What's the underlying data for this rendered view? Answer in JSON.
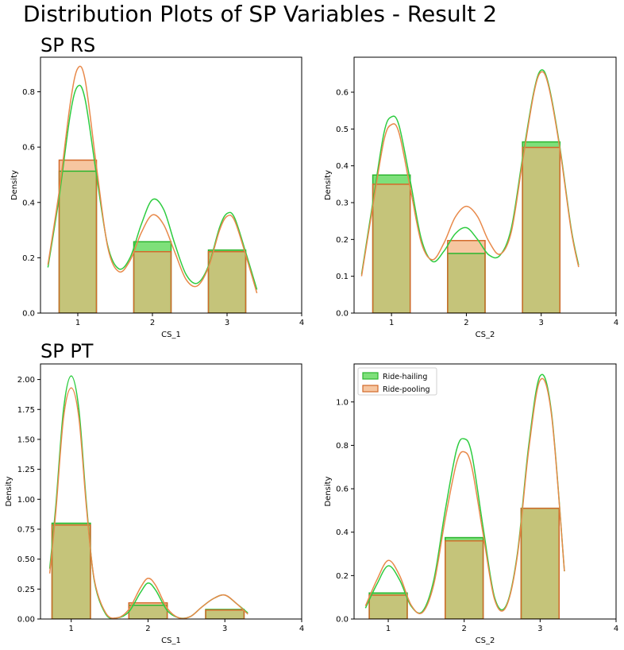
{
  "figure": {
    "title": "Distribution Plots of SP Variables - Result 2",
    "colors": {
      "ride_hailing": "#2ecc40",
      "ride_pooling": "#e8894a",
      "overlap": "#c5c47a"
    }
  },
  "chart_data": [
    {
      "type": "bar",
      "panel_title": "SP RS",
      "xlabel": "CS_1",
      "ylabel": "Density",
      "xlim": [
        0.5,
        4.0
      ],
      "ylim": [
        0,
        0.925
      ],
      "xticks": [
        "1",
        "2",
        "3",
        "4"
      ],
      "yticks": [
        "0.0",
        "0.2",
        "0.4",
        "0.6",
        "0.8"
      ],
      "categories": [
        1,
        2,
        3
      ],
      "series": [
        {
          "name": "Ride-hailing",
          "values": [
            0.513,
            0.258,
            0.228
          ],
          "kde": {
            "x": [
              0.6,
              0.75,
              0.9,
              1.0,
              1.1,
              1.25,
              1.4,
              1.55,
              1.7,
              1.85,
              2.0,
              2.15,
              2.3,
              2.45,
              2.6,
              2.75,
              2.9,
              3.0,
              3.1,
              3.25,
              3.4
            ],
            "y": [
              0.165,
              0.42,
              0.72,
              0.82,
              0.77,
              0.5,
              0.245,
              0.16,
              0.2,
              0.32,
              0.41,
              0.375,
              0.25,
              0.14,
              0.108,
              0.17,
              0.31,
              0.36,
              0.345,
              0.22,
              0.085
            ]
          }
        },
        {
          "name": "Ride-pooling",
          "values": [
            0.553,
            0.222,
            0.222
          ],
          "kde": {
            "x": [
              0.6,
              0.75,
              0.9,
              1.0,
              1.1,
              1.25,
              1.4,
              1.55,
              1.7,
              1.85,
              2.0,
              2.15,
              2.3,
              2.45,
              2.6,
              2.75,
              2.9,
              3.0,
              3.1,
              3.25,
              3.4
            ],
            "y": [
              0.175,
              0.44,
              0.76,
              0.885,
              0.84,
              0.53,
              0.24,
              0.15,
              0.19,
              0.29,
              0.355,
              0.32,
              0.22,
              0.122,
              0.098,
              0.165,
              0.3,
              0.35,
              0.335,
              0.21,
              0.072
            ]
          }
        }
      ]
    },
    {
      "type": "bar",
      "panel_title": "",
      "xlabel": "CS_2",
      "ylabel": "Density",
      "xlim": [
        0.5,
        4.0
      ],
      "ylim": [
        0,
        0.695
      ],
      "xticks": [
        "1",
        "2",
        "3",
        "4"
      ],
      "yticks": [
        "0.0",
        "0.1",
        "0.2",
        "0.3",
        "0.4",
        "0.5",
        "0.6"
      ],
      "categories": [
        1,
        2,
        3
      ],
      "series": [
        {
          "name": "Ride-hailing",
          "values": [
            0.375,
            0.162,
            0.465
          ],
          "kde": {
            "x": [
              0.6,
              0.75,
              0.9,
              1.0,
              1.1,
              1.25,
              1.4,
              1.55,
              1.7,
              1.85,
              2.0,
              2.15,
              2.3,
              2.45,
              2.6,
              2.75,
              2.9,
              3.0,
              3.1,
              3.25,
              3.4,
              3.5
            ],
            "y": [
              0.105,
              0.3,
              0.49,
              0.533,
              0.51,
              0.36,
              0.2,
              0.14,
              0.168,
              0.215,
              0.232,
              0.2,
              0.158,
              0.157,
              0.23,
              0.42,
              0.6,
              0.66,
              0.62,
              0.45,
              0.23,
              0.13
            ]
          }
        },
        {
          "name": "Ride-pooling",
          "values": [
            0.35,
            0.197,
            0.45
          ],
          "kde": {
            "x": [
              0.6,
              0.75,
              0.9,
              1.0,
              1.1,
              1.25,
              1.4,
              1.55,
              1.7,
              1.85,
              2.0,
              2.15,
              2.3,
              2.45,
              2.6,
              2.75,
              2.9,
              3.0,
              3.1,
              3.25,
              3.4,
              3.5
            ],
            "y": [
              0.1,
              0.29,
              0.47,
              0.512,
              0.49,
              0.34,
              0.19,
              0.145,
              0.19,
              0.26,
              0.29,
              0.262,
              0.195,
              0.16,
              0.22,
              0.41,
              0.595,
              0.655,
              0.615,
              0.445,
              0.225,
              0.125
            ]
          }
        }
      ]
    },
    {
      "type": "bar",
      "panel_title": "SP PT",
      "xlabel": "CS_1",
      "ylabel": "Density",
      "xlim": [
        0.6,
        4.0
      ],
      "ylim": [
        0,
        2.13
      ],
      "xticks": [
        "1",
        "2",
        "3",
        "4"
      ],
      "yticks": [
        "0.00",
        "0.25",
        "0.50",
        "0.75",
        "1.00",
        "1.25",
        "1.50",
        "1.75",
        "2.00"
      ],
      "categories": [
        1,
        2,
        3
      ],
      "series": [
        {
          "name": "Ride-hailing",
          "values": [
            0.8,
            0.115,
            0.08
          ],
          "kde": {
            "x": [
              0.72,
              0.8,
              0.9,
              1.0,
              1.1,
              1.2,
              1.3,
              1.45,
              1.6,
              1.75,
              1.9,
              2.0,
              2.1,
              2.25,
              2.4,
              2.55,
              2.7,
              2.85,
              3.0,
              3.15,
              3.3
            ],
            "y": [
              0.42,
              0.95,
              1.75,
              2.03,
              1.75,
              0.95,
              0.32,
              0.04,
              0.01,
              0.06,
              0.22,
              0.3,
              0.24,
              0.07,
              0.01,
              0.02,
              0.1,
              0.17,
              0.2,
              0.13,
              0.05
            ]
          }
        },
        {
          "name": "Ride-pooling",
          "values": [
            0.785,
            0.135,
            0.075
          ],
          "kde": {
            "x": [
              0.72,
              0.8,
              0.9,
              1.0,
              1.1,
              1.2,
              1.3,
              1.45,
              1.6,
              1.75,
              1.9,
              2.0,
              2.1,
              2.25,
              2.4,
              2.55,
              2.7,
              2.85,
              3.0,
              3.15,
              3.3
            ],
            "y": [
              0.38,
              0.9,
              1.68,
              1.93,
              1.68,
              0.92,
              0.33,
              0.05,
              0.01,
              0.08,
              0.26,
              0.34,
              0.28,
              0.09,
              0.01,
              0.02,
              0.1,
              0.17,
              0.2,
              0.13,
              0.04
            ]
          }
        }
      ]
    },
    {
      "type": "bar",
      "panel_title": "",
      "xlabel": "CS_2",
      "ylabel": "Density",
      "xlim": [
        0.55,
        4.0
      ],
      "ylim": [
        0,
        1.175
      ],
      "xticks": [
        "1",
        "2",
        "3",
        "4"
      ],
      "yticks": [
        "0.0",
        "0.2",
        "0.4",
        "0.6",
        "0.8",
        "1.0"
      ],
      "categories": [
        1,
        2,
        3
      ],
      "legend": {
        "position": "top-left",
        "entries": [
          "Ride-hailing",
          "Ride-pooling"
        ]
      },
      "series": [
        {
          "name": "Ride-hailing",
          "values": [
            0.12,
            0.375,
            0.51
          ],
          "kde": {
            "x": [
              0.7,
              0.85,
              1.0,
              1.15,
              1.3,
              1.45,
              1.6,
              1.75,
              1.9,
              2.0,
              2.1,
              2.25,
              2.4,
              2.55,
              2.7,
              2.85,
              3.0,
              3.15,
              3.32
            ],
            "y": [
              0.05,
              0.16,
              0.245,
              0.18,
              0.06,
              0.035,
              0.18,
              0.5,
              0.78,
              0.83,
              0.76,
              0.42,
              0.1,
              0.06,
              0.3,
              0.8,
              1.12,
              0.95,
              0.22
            ]
          }
        },
        {
          "name": "Ride-pooling",
          "values": [
            0.11,
            0.36,
            0.51
          ],
          "kde": {
            "x": [
              0.7,
              0.85,
              1.0,
              1.15,
              1.3,
              1.45,
              1.6,
              1.75,
              1.9,
              2.0,
              2.1,
              2.25,
              2.4,
              2.55,
              2.7,
              2.85,
              3.0,
              3.15,
              3.32
            ],
            "y": [
              0.06,
              0.18,
              0.27,
              0.2,
              0.065,
              0.03,
              0.16,
              0.46,
              0.72,
              0.77,
              0.7,
              0.39,
              0.09,
              0.055,
              0.29,
              0.78,
              1.1,
              0.94,
              0.22
            ]
          }
        }
      ]
    }
  ]
}
